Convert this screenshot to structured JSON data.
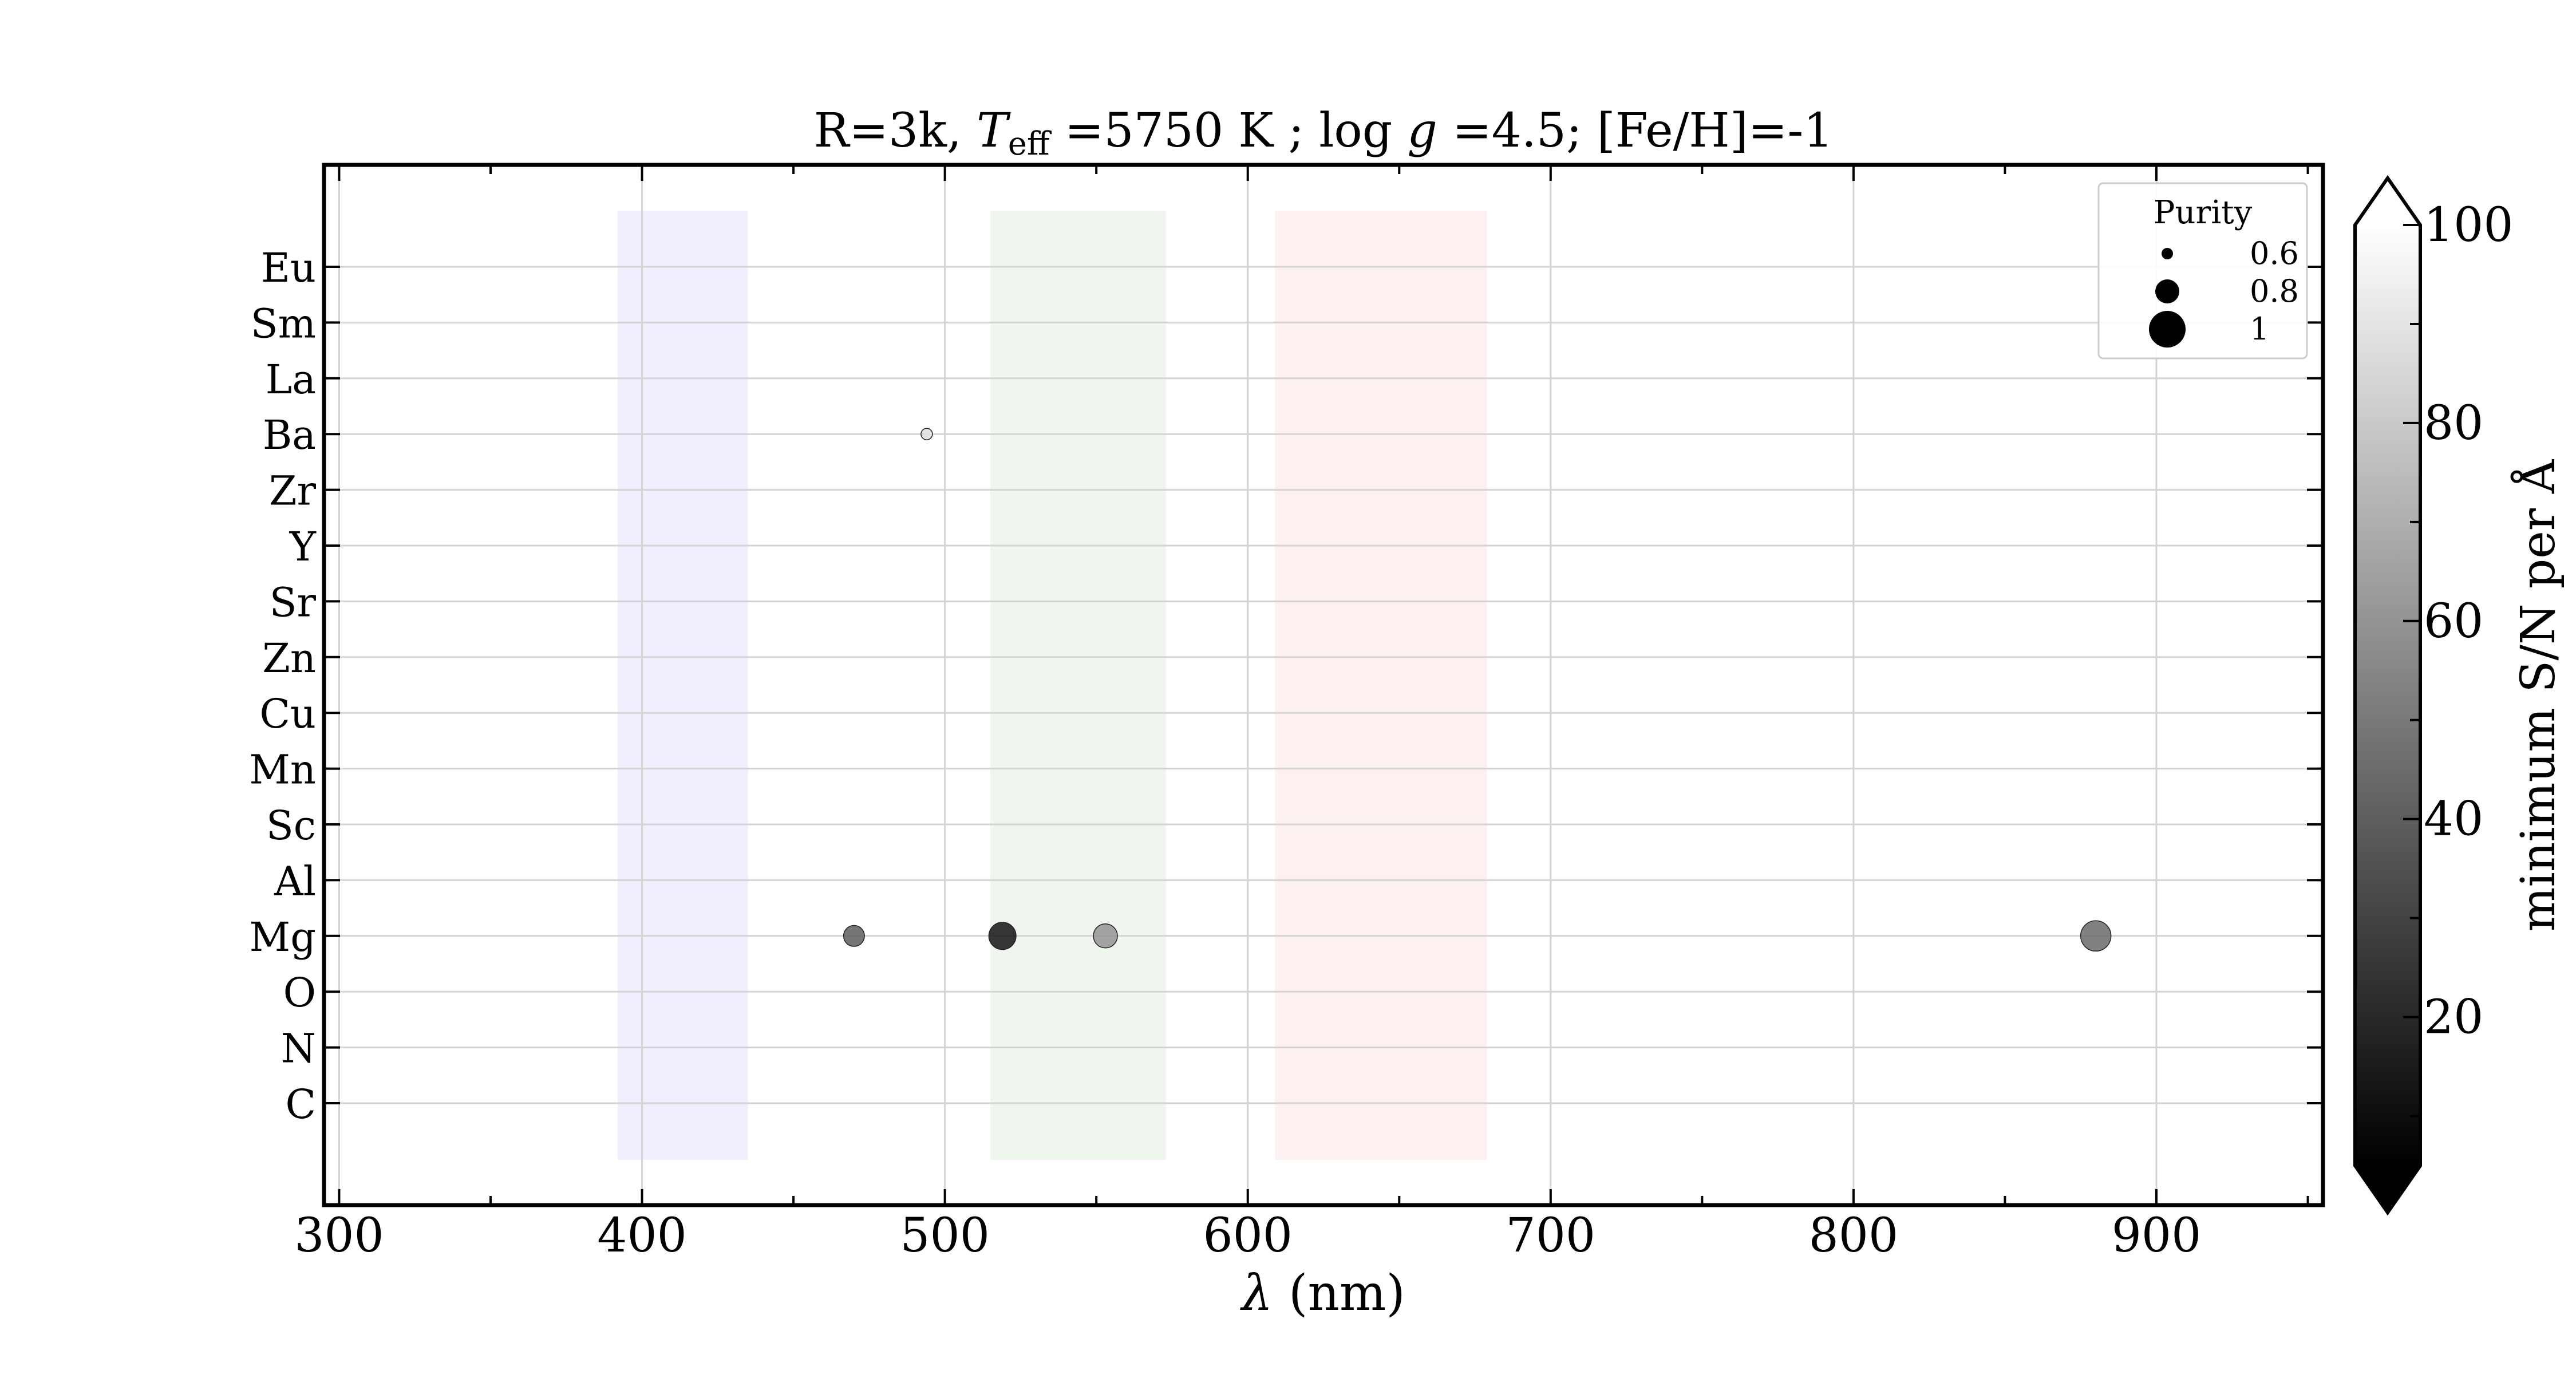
{
  "chart_data": {
    "type": "scatter",
    "title": "R=3k, T_eff =5750 K ; log g =4.5; [Fe/H]=-1",
    "title_parts": {
      "prefix": "R=3k, ",
      "teff_symbol": "T",
      "teff_subscript": "eff",
      "teff_value": " =5750 K ; log ",
      "logg_symbol": "g",
      "logg_value": " =4.5; [Fe/H]=-1"
    },
    "xlabel": "λ (nm)",
    "xlabel_parts": {
      "symbol": "λ",
      "unit": " (nm)"
    },
    "xlim": [
      295,
      955
    ],
    "x_ticks": [
      300,
      400,
      500,
      600,
      700,
      800,
      900
    ],
    "categories": [
      "C",
      "N",
      "O",
      "Mg",
      "Al",
      "Sc",
      "Mn",
      "Cu",
      "Zn",
      "Sr",
      "Y",
      "Zr",
      "Ba",
      "La",
      "Sm",
      "Eu"
    ],
    "grid": true,
    "bands": [
      {
        "xmin": 392,
        "xmax": 435,
        "color": "#efeffd"
      },
      {
        "xmin": 515,
        "xmax": 573,
        "color": "#eef6ee"
      },
      {
        "xmin": 609,
        "xmax": 679,
        "color": "#fdf0f0"
      }
    ],
    "points": [
      {
        "x": 494,
        "element": "Ba",
        "sn": 88,
        "purity": 0.6
      },
      {
        "x": 470,
        "element": "Mg",
        "sn": 40,
        "purity": 0.75
      },
      {
        "x": 519,
        "element": "Mg",
        "sn": 12,
        "purity": 0.85
      },
      {
        "x": 553,
        "element": "Mg",
        "sn": 60,
        "purity": 0.8
      },
      {
        "x": 880,
        "element": "Mg",
        "sn": 45,
        "purity": 0.9
      }
    ],
    "legend": {
      "title": "Purity",
      "placement": "top-right",
      "entries": [
        {
          "label": "0.6",
          "purity": 0.6
        },
        {
          "label": "0.8",
          "purity": 0.8
        },
        {
          "label": "1",
          "purity": 1.0
        }
      ]
    },
    "colorbar": {
      "label": "minimum S/N per Å",
      "cmap": "gray",
      "range": [
        5,
        100
      ],
      "ticks": [
        20,
        40,
        60,
        80,
        100
      ],
      "extend": "both"
    }
  }
}
